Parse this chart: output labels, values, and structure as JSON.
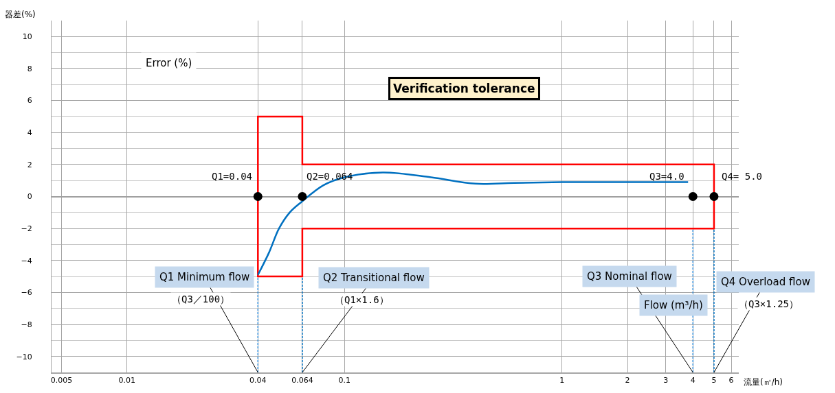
{
  "chart_data": {
    "type": "line",
    "title": "Verification tolerance",
    "xlabel": "流量(㎥/h)",
    "ylabel": "器差(%)",
    "log": "x",
    "xlim": [
      0.0045,
      6.5
    ],
    "xticks": [
      0.005,
      0.01,
      0.04,
      0.064,
      0.1,
      1,
      2,
      3,
      4,
      5,
      6
    ],
    "ylim": [
      -11,
      11
    ],
    "yticks": [
      {
        "value": -10,
        "label": "−10"
      },
      {
        "value": -8,
        "label": "−8"
      },
      {
        "value": -6,
        "label": "−6"
      },
      {
        "value": -4,
        "label": "−4"
      },
      {
        "value": -2,
        "label": "−2"
      },
      0,
      2,
      4,
      6,
      8,
      10
    ],
    "grid": true,
    "series": [
      {
        "color": "#ff0000",
        "x": [
          0.04,
          0.04,
          0.064,
          0.064,
          5,
          5
        ],
        "values": [
          0,
          5,
          5,
          2,
          2,
          0
        ]
      },
      {
        "color": "#ff0000",
        "x": [
          0.04,
          0.04,
          0.064,
          0.064,
          5,
          5
        ],
        "values": [
          0,
          -5,
          -5,
          -2,
          -2,
          0
        ]
      },
      {
        "color": "#0070c0",
        "x": [
          0.04,
          0.045,
          0.05,
          0.056,
          0.064,
          0.08,
          0.1,
          0.15,
          0.25,
          0.4,
          0.6,
          1,
          2,
          3,
          3.8
        ],
        "values": [
          -4.9,
          -3.5,
          -2,
          -1,
          -0.3,
          0.7,
          1.2,
          1.5,
          1.2,
          0.8,
          0.85,
          0.9,
          0.9,
          0.9,
          0.9
        ]
      },
      {
        "type": "line",
        "color": "#2e8bd8",
        "line_style": "dashed",
        "x": [
          0.04,
          0.04
        ],
        "values": [
          -11,
          -5
        ]
      },
      {
        "type": "line",
        "color": "#0070c0",
        "line_style": "dashed",
        "x": [
          0.064,
          0.064
        ],
        "values": [
          -11,
          -5
        ]
      },
      {
        "type": "line",
        "color": "#2e8bd8",
        "line_style": "dashed",
        "x": [
          4,
          4
        ],
        "values": [
          -11,
          -2
        ]
      },
      {
        "type": "line",
        "color": "#0070c0",
        "line_style": "dashed",
        "x": [
          5,
          5
        ],
        "values": [
          -11,
          -2
        ]
      },
      {
        "type": "scatter",
        "color": "#000000",
        "marker": "circle",
        "x": [
          0.04,
          0.064,
          4,
          5
        ],
        "values": [
          0,
          0,
          0,
          0
        ]
      }
    ],
    "annotations": [
      "Error (%)",
      "Flow (m³/h)",
      {
        "text": "Q1 Minimum flow",
        "x": 0.04,
        "y": -11
      },
      {
        "text": "（Q3／100）",
        "x": 0.04,
        "y": -11
      },
      {
        "text": "Q2 Transitional flow",
        "x": 0.064,
        "y": -11
      },
      {
        "text": "（Q1×1.6）",
        "x": 0.064,
        "y": -11
      },
      {
        "text": "Q3 Nominal flow",
        "x": 4,
        "y": -11
      },
      {
        "text": "Q4 Overload flow",
        "x": 5,
        "y": -11
      },
      {
        "text": "（Q3×1.25）",
        "x": 5,
        "y": -11
      },
      {
        "text": "Q1=0.04",
        "x": 0.04,
        "y": 0
      },
      {
        "text": "Q2=0.064",
        "x": 0.064,
        "y": 0
      },
      {
        "text": "Q3=4.0",
        "x": 4,
        "y": 0
      },
      {
        "text": "Q4= 5.0",
        "x": 5,
        "y": 0
      }
    ]
  }
}
